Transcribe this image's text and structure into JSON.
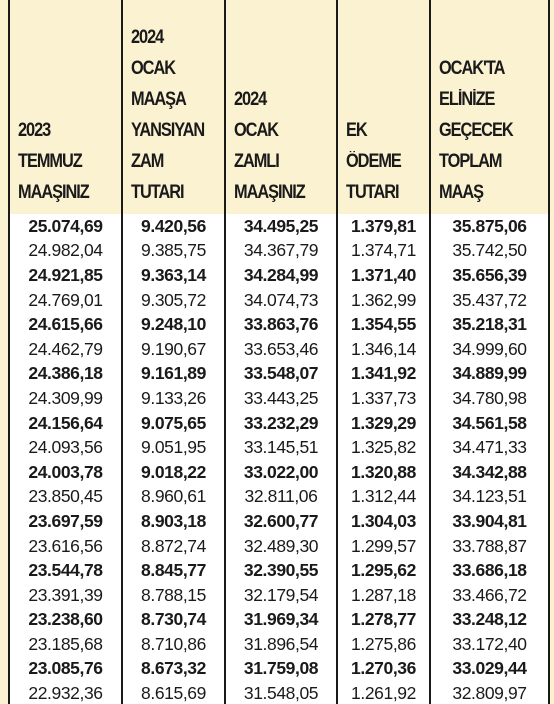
{
  "table": {
    "headers": [
      [
        "2023",
        "TEMMUZ",
        "MAAŞINIZ"
      ],
      [
        "2024",
        "OCAK",
        "MAAŞA",
        "YANSIYAN",
        "ZAM",
        "TUTARI"
      ],
      [
        "2024",
        "OCAK",
        "ZAMLI",
        "MAAŞINIZ"
      ],
      [
        "EK",
        "ÖDEME",
        "TUTARI"
      ],
      [
        "OCAK'TA",
        "ELİNİZE",
        "GEÇECEK",
        "TOPLAM",
        "MAAŞ"
      ]
    ],
    "rows": [
      [
        "25.074,69",
        "9.420,56",
        "34.495,25",
        "1.379,81",
        "35.875,06"
      ],
      [
        "24.982,04",
        "9.385,75",
        "34.367,79",
        "1.374,71",
        "35.742,50"
      ],
      [
        "24.921,85",
        "9.363,14",
        "34.284,99",
        "1.371,40",
        "35.656,39"
      ],
      [
        "24.769,01",
        "9.305,72",
        "34.074,73",
        "1.362,99",
        "35.437,72"
      ],
      [
        "24.615,66",
        "9.248,10",
        "33.863,76",
        "1.354,55",
        "35.218,31"
      ],
      [
        "24.462,79",
        "9.190,67",
        "33.653,46",
        "1.346,14",
        "34.999,60"
      ],
      [
        "24.386,18",
        "9.161,89",
        "33.548,07",
        "1.341,92",
        "34.889,99"
      ],
      [
        "24.309,99",
        "9.133,26",
        "33.443,25",
        "1.337,73",
        "34.780,98"
      ],
      [
        "24.156,64",
        "9.075,65",
        "33.232,29",
        "1.329,29",
        "34.561,58"
      ],
      [
        "24.093,56",
        "9.051,95",
        "33.145,51",
        "1.325,82",
        "34.471,33"
      ],
      [
        "24.003,78",
        "9.018,22",
        "33.022,00",
        "1.320,88",
        "34.342,88"
      ],
      [
        "23.850,45",
        "8.960,61",
        "32.811,06",
        "1.312,44",
        "34.123,51"
      ],
      [
        "23.697,59",
        "8.903,18",
        "32.600,77",
        "1.304,03",
        "33.904,81"
      ],
      [
        "23.616,56",
        "8.872,74",
        "32.489,30",
        "1.299,57",
        "33.788,87"
      ],
      [
        "23.544,78",
        "8.845,77",
        "32.390,55",
        "1.295,62",
        "33.686,18"
      ],
      [
        "23.391,39",
        "8.788,15",
        "32.179,54",
        "1.287,18",
        "33.466,72"
      ],
      [
        "23.238,60",
        "8.730,74",
        "31.969,34",
        "1.278,77",
        "33.248,12"
      ],
      [
        "23.185,68",
        "8.710,86",
        "31.896,54",
        "1.275,86",
        "33.172,40"
      ],
      [
        "23.085,76",
        "8.673,32",
        "31.759,08",
        "1.270,36",
        "33.029,44"
      ],
      [
        "22.932,36",
        "8.615,69",
        "31.548,05",
        "1.261,92",
        "32.809,97"
      ]
    ]
  }
}
